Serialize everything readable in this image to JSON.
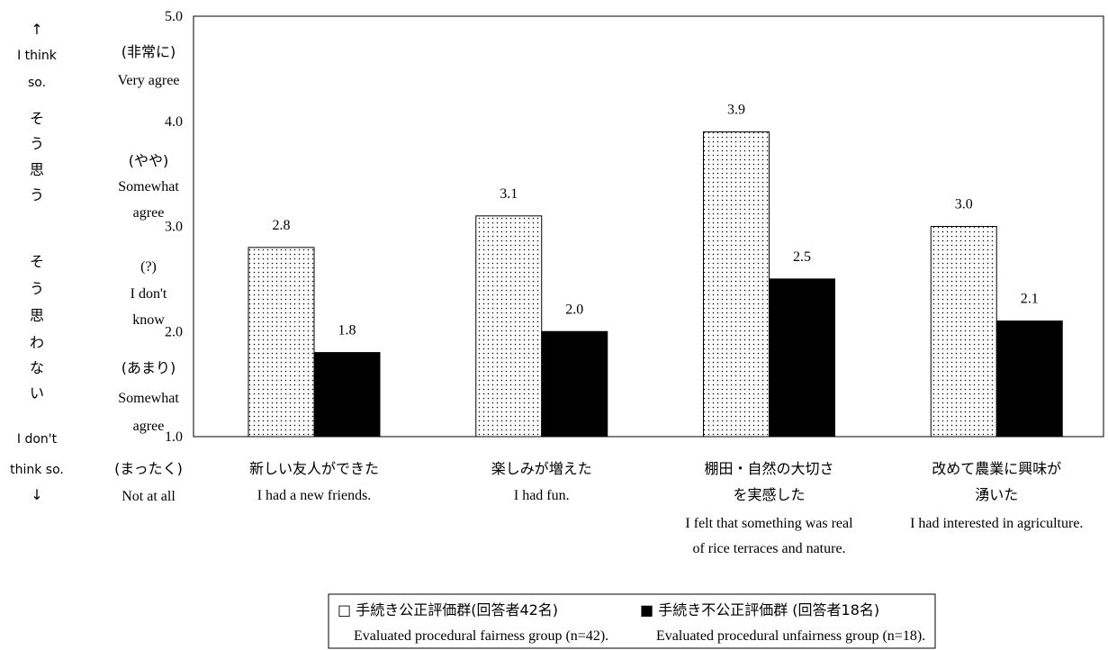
{
  "chart_data": {
    "type": "bar",
    "categories": [
      {
        "ja": [
          "新しい友人ができた"
        ],
        "en": [
          "I had a new friends."
        ]
      },
      {
        "ja": [
          "楽しみが増えた"
        ],
        "en": [
          "I had fun."
        ]
      },
      {
        "ja": [
          "棚田・自然の大切さ",
          "を実感した"
        ],
        "en": [
          "I felt that something was real",
          "of rice terraces and nature."
        ]
      },
      {
        "ja": [
          "改めて農業に興味が",
          "湧いた"
        ],
        "en": [
          "I had interested in agriculture."
        ]
      }
    ],
    "series": [
      {
        "name_ja": "□ 手続き公正評価群(回答者42名)",
        "name_en": "Evaluated procedural fairness group (n=42).",
        "pattern": "dots",
        "values": [
          2.8,
          3.1,
          3.9,
          3.0
        ],
        "labels": [
          "2.8",
          "3.1",
          "3.9",
          "3.0"
        ]
      },
      {
        "name_ja": "■ 手続き不公正評価群 (回答者18名)",
        "name_en": "Evaluated procedural unfairness group (n=18).",
        "pattern": "solid",
        "values": [
          1.8,
          2.0,
          2.5,
          2.1
        ],
        "labels": [
          "1.8",
          "2.0",
          "2.5",
          "2.1"
        ]
      }
    ],
    "ylim": [
      1.0,
      5.0
    ],
    "yticks": [
      {
        "value": 5.0,
        "label": "5.0"
      },
      {
        "value": 4.0,
        "label": "4.0"
      },
      {
        "value": 3.0,
        "label": "3.0"
      },
      {
        "value": 2.0,
        "label": "2.0"
      },
      {
        "value": 1.0,
        "label": "1.0"
      }
    ],
    "scale_labels": [
      {
        "lines": [
          "(非常に)",
          "Very agree"
        ]
      },
      {
        "lines": [
          "(やや)",
          "Somewhat",
          "agree"
        ]
      },
      {
        "lines": [
          "(?)",
          "I don't",
          "know"
        ]
      },
      {
        "lines": [
          "(あまり)",
          "Somewhat",
          "agree"
        ]
      },
      {
        "lines": [
          "(まったく)",
          "Not at all"
        ]
      }
    ],
    "left_annotation": {
      "top_lines": [
        "↑",
        "I think",
        "so.",
        "そ",
        "う",
        "思",
        "う"
      ],
      "middle_lines": [
        "そ",
        "う",
        "思",
        "わ",
        "な",
        "い"
      ],
      "bottom_lines": [
        "I don't",
        "think so.",
        "↓"
      ]
    },
    "grid": false,
    "legend_position": "bottom-center"
  }
}
